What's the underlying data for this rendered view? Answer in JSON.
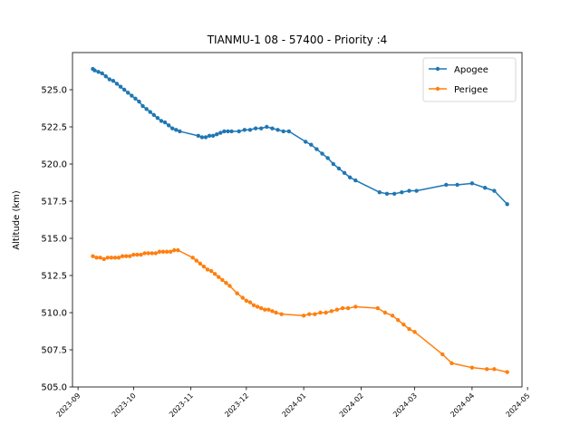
{
  "chart_data": {
    "type": "line",
    "title": "TIANMU-1 08 - 57400 - Priority :4",
    "xlabel": "",
    "ylabel": "Altitude (km)",
    "x_ticks": [
      "2023-09",
      "2023-10",
      "2023-11",
      "2023-12",
      "2024-01",
      "2024-02",
      "2024-03",
      "2024-04",
      "2024-05"
    ],
    "y_ticks": [
      "505.0",
      "507.5",
      "510.0",
      "512.5",
      "515.0",
      "517.5",
      "520.0",
      "522.5",
      "525.0"
    ],
    "xlim": [
      "2023-08-29",
      "2024-04-28"
    ],
    "ylim": [
      505.0,
      527.5
    ],
    "grid": false,
    "legend_position": "upper right",
    "series": [
      {
        "name": "Apogee",
        "color": "#1f77b4",
        "points": [
          [
            "2023-09-09",
            526.4
          ],
          [
            "2023-09-10",
            526.3
          ],
          [
            "2023-09-12",
            526.2
          ],
          [
            "2023-09-14",
            526.1
          ],
          [
            "2023-09-16",
            525.9
          ],
          [
            "2023-09-18",
            525.7
          ],
          [
            "2023-09-20",
            525.6
          ],
          [
            "2023-09-22",
            525.4
          ],
          [
            "2023-09-24",
            525.2
          ],
          [
            "2023-09-26",
            525.0
          ],
          [
            "2023-09-28",
            524.8
          ],
          [
            "2023-09-30",
            524.6
          ],
          [
            "2023-10-02",
            524.4
          ],
          [
            "2023-10-04",
            524.2
          ],
          [
            "2023-10-06",
            523.9
          ],
          [
            "2023-10-08",
            523.7
          ],
          [
            "2023-10-10",
            523.5
          ],
          [
            "2023-10-12",
            523.3
          ],
          [
            "2023-10-14",
            523.1
          ],
          [
            "2023-10-16",
            522.9
          ],
          [
            "2023-10-18",
            522.8
          ],
          [
            "2023-10-20",
            522.6
          ],
          [
            "2023-10-22",
            522.4
          ],
          [
            "2023-10-24",
            522.3
          ],
          [
            "2023-10-26",
            522.2
          ],
          [
            "2023-11-05",
            521.9
          ],
          [
            "2023-11-07",
            521.8
          ],
          [
            "2023-11-09",
            521.8
          ],
          [
            "2023-11-11",
            521.9
          ],
          [
            "2023-11-13",
            521.9
          ],
          [
            "2023-11-15",
            522.0
          ],
          [
            "2023-11-17",
            522.1
          ],
          [
            "2023-11-19",
            522.2
          ],
          [
            "2023-11-21",
            522.2
          ],
          [
            "2023-11-23",
            522.2
          ],
          [
            "2023-11-27",
            522.2
          ],
          [
            "2023-11-30",
            522.3
          ],
          [
            "2023-12-03",
            522.3
          ],
          [
            "2023-12-06",
            522.4
          ],
          [
            "2023-12-09",
            522.4
          ],
          [
            "2023-12-12",
            522.5
          ],
          [
            "2023-12-15",
            522.4
          ],
          [
            "2023-12-18",
            522.3
          ],
          [
            "2023-12-21",
            522.2
          ],
          [
            "2023-12-24",
            522.2
          ],
          [
            "2024-01-02",
            521.5
          ],
          [
            "2024-01-05",
            521.3
          ],
          [
            "2024-01-08",
            521.0
          ],
          [
            "2024-01-11",
            520.7
          ],
          [
            "2024-01-14",
            520.4
          ],
          [
            "2024-01-17",
            520.0
          ],
          [
            "2024-01-20",
            519.7
          ],
          [
            "2024-01-23",
            519.4
          ],
          [
            "2024-01-26",
            519.1
          ],
          [
            "2024-01-29",
            518.9
          ],
          [
            "2024-02-11",
            518.1
          ],
          [
            "2024-02-15",
            518.0
          ],
          [
            "2024-02-19",
            518.0
          ],
          [
            "2024-02-23",
            518.1
          ],
          [
            "2024-02-27",
            518.2
          ],
          [
            "2024-03-02",
            518.2
          ],
          [
            "2024-03-18",
            518.6
          ],
          [
            "2024-03-24",
            518.6
          ],
          [
            "2024-04-01",
            518.7
          ],
          [
            "2024-04-08",
            518.4
          ],
          [
            "2024-04-13",
            518.2
          ],
          [
            "2024-04-20",
            517.3
          ]
        ]
      },
      {
        "name": "Perigee",
        "color": "#ff7f0e",
        "points": [
          [
            "2023-09-09",
            513.8
          ],
          [
            "2023-09-11",
            513.7
          ],
          [
            "2023-09-13",
            513.7
          ],
          [
            "2023-09-15",
            513.6
          ],
          [
            "2023-09-17",
            513.7
          ],
          [
            "2023-09-19",
            513.7
          ],
          [
            "2023-09-21",
            513.7
          ],
          [
            "2023-09-23",
            513.7
          ],
          [
            "2023-09-25",
            513.8
          ],
          [
            "2023-09-27",
            513.8
          ],
          [
            "2023-09-29",
            513.8
          ],
          [
            "2023-10-01",
            513.9
          ],
          [
            "2023-10-03",
            513.9
          ],
          [
            "2023-10-05",
            513.9
          ],
          [
            "2023-10-07",
            514.0
          ],
          [
            "2023-10-09",
            514.0
          ],
          [
            "2023-10-11",
            514.0
          ],
          [
            "2023-10-13",
            514.0
          ],
          [
            "2023-10-15",
            514.1
          ],
          [
            "2023-10-17",
            514.1
          ],
          [
            "2023-10-19",
            514.1
          ],
          [
            "2023-10-21",
            514.1
          ],
          [
            "2023-10-23",
            514.2
          ],
          [
            "2023-10-25",
            514.2
          ],
          [
            "2023-11-02",
            513.7
          ],
          [
            "2023-11-04",
            513.5
          ],
          [
            "2023-11-06",
            513.3
          ],
          [
            "2023-11-08",
            513.1
          ],
          [
            "2023-11-10",
            512.9
          ],
          [
            "2023-11-12",
            512.8
          ],
          [
            "2023-11-14",
            512.6
          ],
          [
            "2023-11-16",
            512.4
          ],
          [
            "2023-11-18",
            512.2
          ],
          [
            "2023-11-20",
            512.0
          ],
          [
            "2023-11-22",
            511.8
          ],
          [
            "2023-11-26",
            511.3
          ],
          [
            "2023-11-29",
            511.0
          ],
          [
            "2023-12-01",
            510.8
          ],
          [
            "2023-12-03",
            510.7
          ],
          [
            "2023-12-05",
            510.5
          ],
          [
            "2023-12-07",
            510.4
          ],
          [
            "2023-12-09",
            510.3
          ],
          [
            "2023-12-11",
            510.2
          ],
          [
            "2023-12-13",
            510.2
          ],
          [
            "2023-12-15",
            510.1
          ],
          [
            "2023-12-17",
            510.0
          ],
          [
            "2023-12-20",
            509.9
          ],
          [
            "2024-01-01",
            509.8
          ],
          [
            "2024-01-04",
            509.9
          ],
          [
            "2024-01-07",
            509.9
          ],
          [
            "2024-01-10",
            510.0
          ],
          [
            "2024-01-13",
            510.0
          ],
          [
            "2024-01-16",
            510.1
          ],
          [
            "2024-01-19",
            510.2
          ],
          [
            "2024-01-22",
            510.3
          ],
          [
            "2024-01-25",
            510.3
          ],
          [
            "2024-01-29",
            510.4
          ],
          [
            "2024-02-10",
            510.3
          ],
          [
            "2024-02-14",
            510.0
          ],
          [
            "2024-02-18",
            509.8
          ],
          [
            "2024-02-21",
            509.5
          ],
          [
            "2024-02-24",
            509.2
          ],
          [
            "2024-02-27",
            508.9
          ],
          [
            "2024-03-01",
            508.7
          ],
          [
            "2024-03-16",
            507.2
          ],
          [
            "2024-03-21",
            506.6
          ],
          [
            "2024-04-01",
            506.3
          ],
          [
            "2024-04-09",
            506.2
          ],
          [
            "2024-04-13",
            506.2
          ],
          [
            "2024-04-20",
            506.0
          ]
        ]
      }
    ]
  }
}
